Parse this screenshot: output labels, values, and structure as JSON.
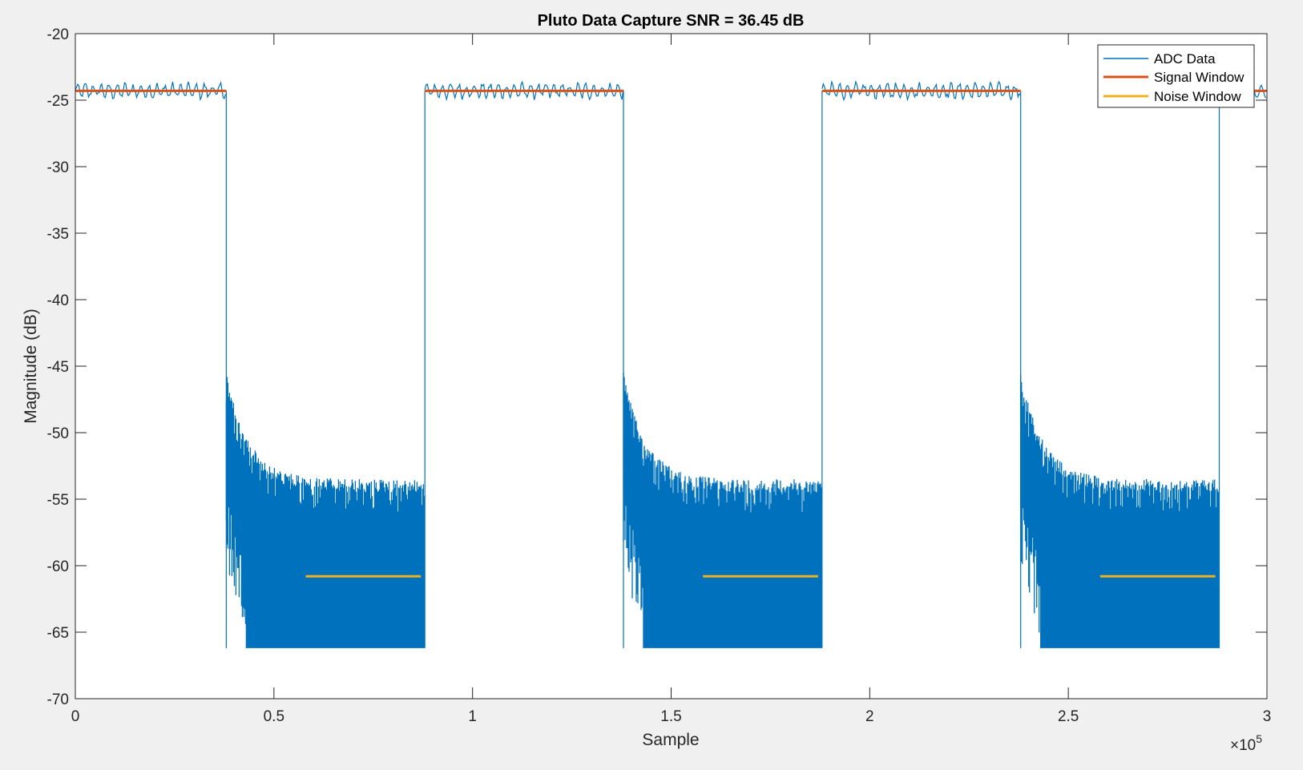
{
  "chart_data": {
    "type": "line",
    "title": "Pluto Data Capture SNR = 36.45 dB",
    "xlabel": "Sample",
    "ylabel": "Magnitude (dB)",
    "xlim": [
      0,
      300000
    ],
    "ylim": [
      -70,
      -20
    ],
    "x_exponent_label": "×10",
    "x_exponent_power": "5",
    "x_ticks": [
      0,
      50000,
      100000,
      150000,
      200000,
      250000,
      300000
    ],
    "x_tick_labels": [
      "0",
      "0.5",
      "1",
      "1.5",
      "2",
      "2.5",
      "3"
    ],
    "y_ticks": [
      -70,
      -65,
      -60,
      -55,
      -50,
      -45,
      -40,
      -35,
      -30,
      -25,
      -20
    ],
    "y_tick_labels": [
      "-70",
      "-65",
      "-60",
      "-55",
      "-50",
      "-45",
      "-40",
      "-35",
      "-30",
      "-25",
      "-20"
    ],
    "grid": false,
    "legend_position": "top-right",
    "series": [
      {
        "name": "ADC Data",
        "color": "#0072bd",
        "description_of_shape": "square-wave burst pattern",
        "signal_level": -24.3,
        "noise_floor_min": -66.2,
        "noise_ceiling_start": -45.5,
        "noise_ceiling_end": -53.5,
        "bursts_on": [
          [
            0,
            38000
          ],
          [
            88000,
            138000
          ],
          [
            188000,
            238000
          ],
          [
            288000,
            300000
          ]
        ],
        "bursts_off": [
          [
            38000,
            88000
          ],
          [
            138000,
            188000
          ],
          [
            238000,
            288000
          ]
        ]
      },
      {
        "name": "Signal Window",
        "color": "#d95319",
        "level": -24.3,
        "segments": [
          [
            0,
            38000
          ],
          [
            88000,
            138000
          ],
          [
            188000,
            238000
          ],
          [
            288000,
            300000
          ]
        ]
      },
      {
        "name": "Noise Window",
        "color": "#edb120",
        "level": -60.8,
        "segments": [
          [
            58000,
            87000
          ],
          [
            158000,
            187000
          ],
          [
            258000,
            287000
          ]
        ]
      }
    ]
  }
}
